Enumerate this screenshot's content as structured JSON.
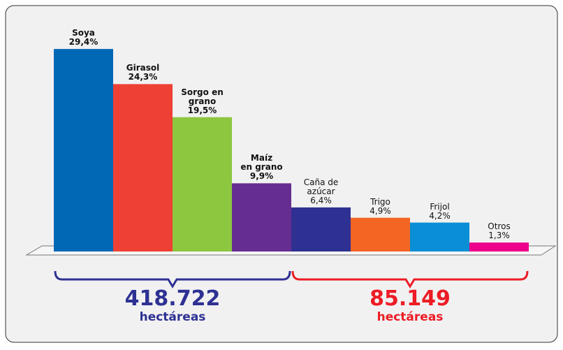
{
  "chart_data": {
    "type": "bar",
    "categories": [
      "Soya",
      "Girasol",
      "Sorgo en\ngrano",
      "Maíz\nen grano",
      "Caña de\nazúcar",
      "Trigo",
      "Frijol",
      "Otros"
    ],
    "values": [
      29.4,
      24.3,
      19.5,
      9.9,
      6.4,
      4.9,
      4.2,
      1.3
    ],
    "value_labels": [
      "29,4%",
      "24,3%",
      "19,5%",
      "9,9%",
      "6,4%",
      "4,9%",
      "4,2%",
      "1,3%"
    ],
    "colors": [
      "#0068b5",
      "#ee4035",
      "#8dc63f",
      "#662d91",
      "#2e3192",
      "#f26522",
      "#0a8fd6",
      "#ec008c"
    ],
    "annotations": [
      {
        "text": "418.722",
        "subtext": "hectáreas",
        "color": "#2e3192"
      },
      {
        "text": "85.149",
        "subtext": "hectáreas",
        "color": "#ed1c24"
      }
    ]
  }
}
